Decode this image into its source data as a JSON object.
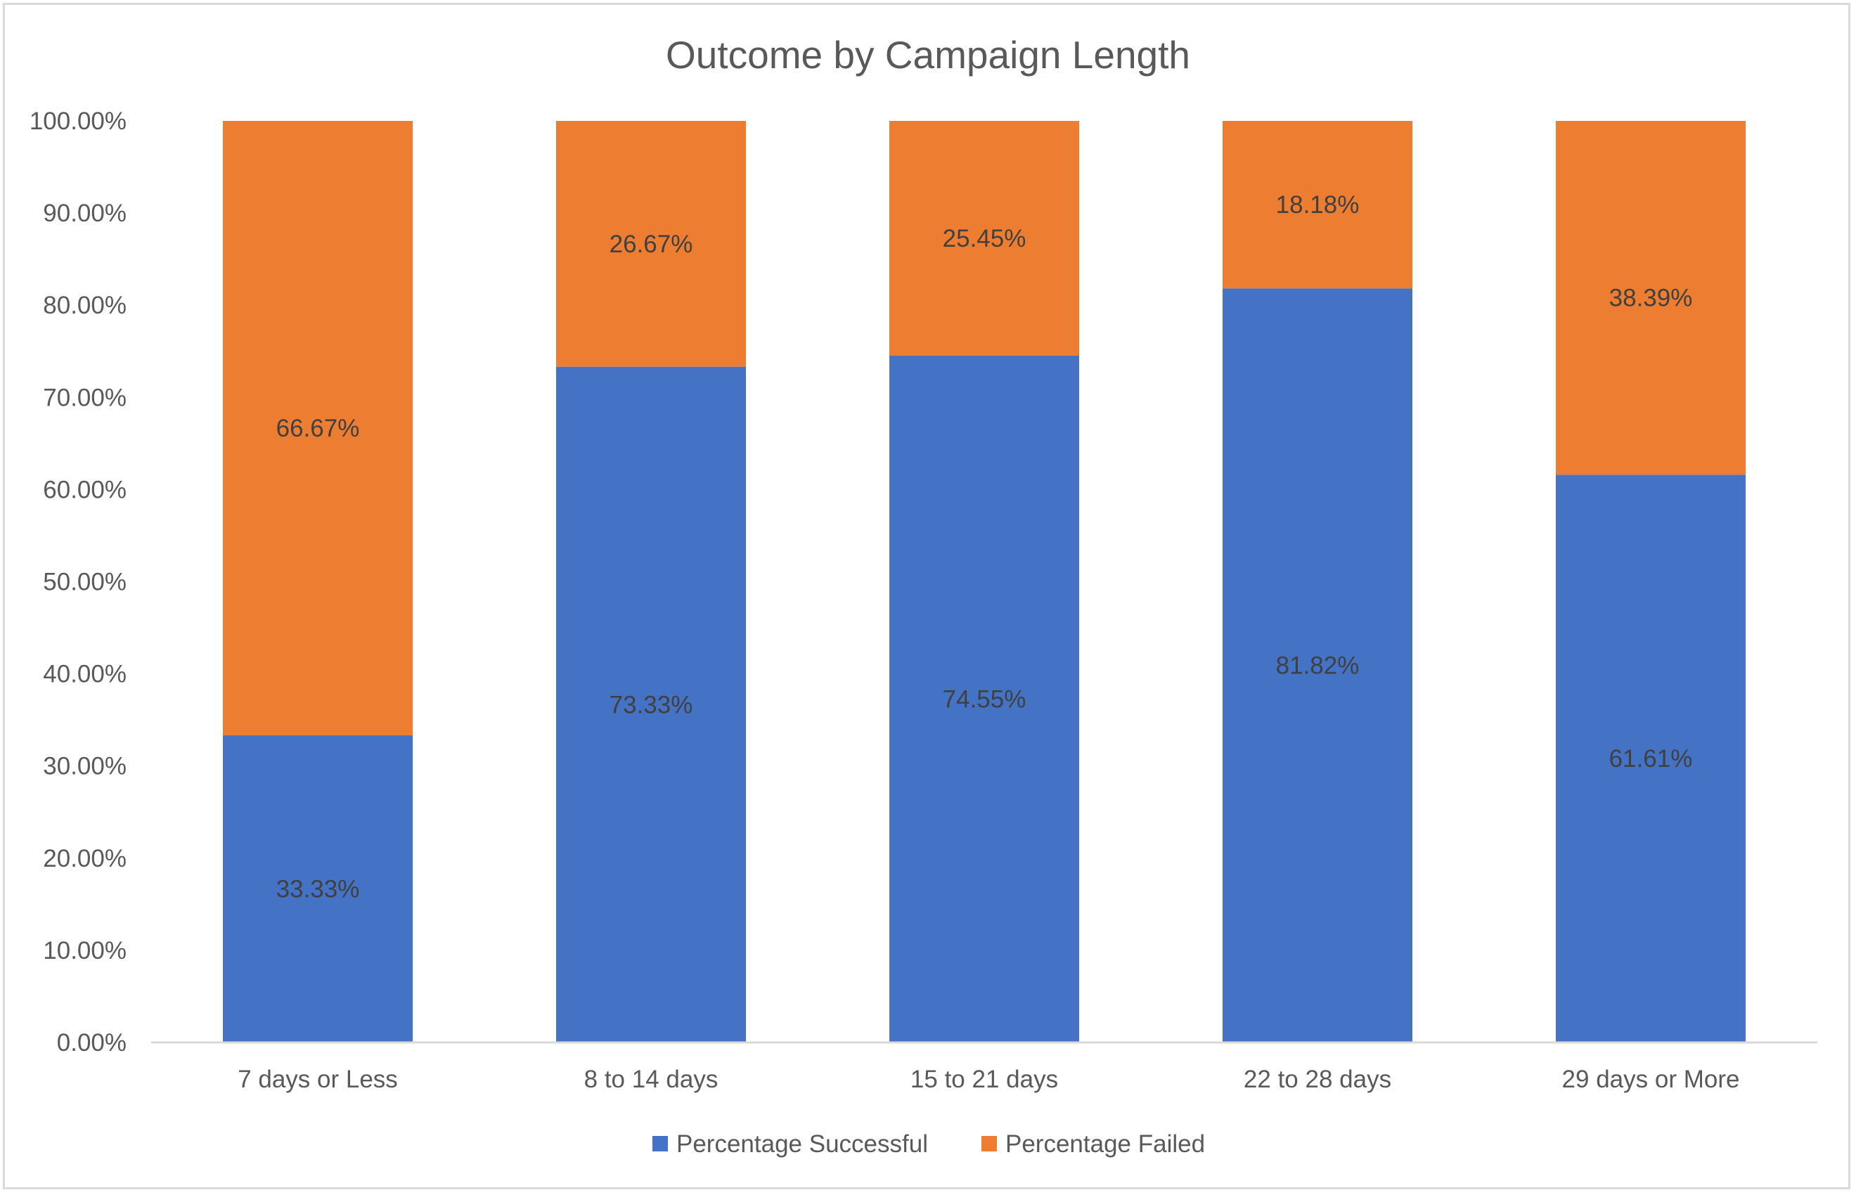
{
  "chart_data": {
    "type": "bar",
    "stacked": true,
    "title": "Outcome by Campaign Length",
    "xlabel": "",
    "ylabel": "",
    "ylim": [
      0,
      100
    ],
    "y_ticks": [
      "0.00%",
      "10.00%",
      "20.00%",
      "30.00%",
      "40.00%",
      "50.00%",
      "60.00%",
      "70.00%",
      "80.00%",
      "90.00%",
      "100.00%"
    ],
    "categories": [
      "7 days or Less",
      "8 to 14 days",
      "15 to 21 days",
      "22 to 28 days",
      "29 days or More"
    ],
    "series": [
      {
        "name": "Percentage Successful",
        "color": "#4472c4",
        "values": [
          33.33,
          73.33,
          74.55,
          81.82,
          61.61
        ],
        "labels": [
          "33.33%",
          "73.33%",
          "74.55%",
          "81.82%",
          "61.61%"
        ]
      },
      {
        "name": "Percentage Failed",
        "color": "#ed7d31",
        "values": [
          66.67,
          26.67,
          25.45,
          18.18,
          38.39
        ],
        "labels": [
          "66.67%",
          "26.67%",
          "25.45%",
          "18.18%",
          "38.39%"
        ]
      }
    ],
    "grid": false,
    "legend_position": "bottom"
  }
}
